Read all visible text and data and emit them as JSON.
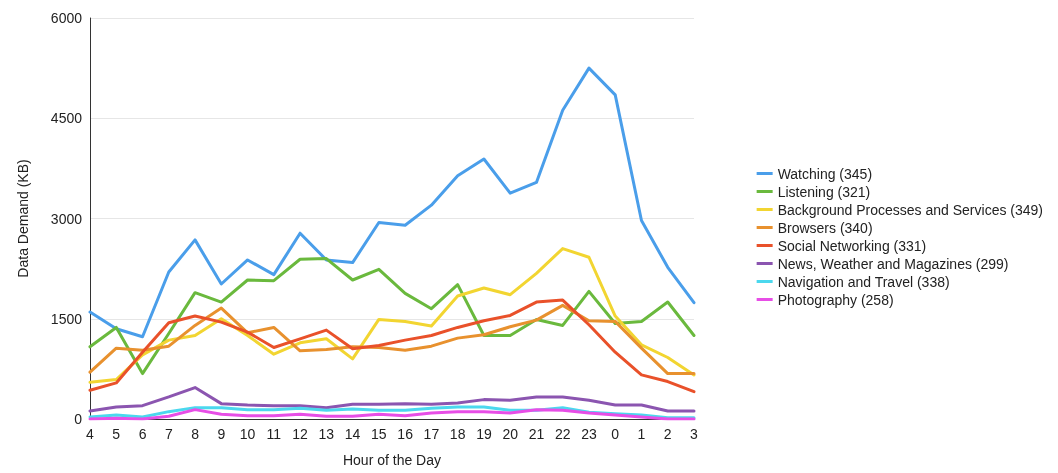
{
  "chart_data": {
    "type": "line",
    "xlabel": "Hour of the Day",
    "ylabel": "Data Demand (KB)",
    "categories": [
      "4",
      "5",
      "6",
      "7",
      "8",
      "9",
      "10",
      "11",
      "12",
      "13",
      "14",
      "15",
      "16",
      "17",
      "18",
      "19",
      "20",
      "21",
      "22",
      "23",
      "0",
      "1",
      "2",
      "3"
    ],
    "ylim": [
      0,
      6000
    ],
    "yticks": [
      0,
      1500,
      3000,
      4500,
      6000
    ],
    "grid": "y",
    "legend": "right",
    "marker": "none",
    "line_style": "solid",
    "series": [
      {
        "name": "Watching (345)",
        "color": "#4a9eea",
        "values": [
          1600,
          1350,
          1230,
          2200,
          2680,
          2020,
          2380,
          2160,
          2780,
          2380,
          2340,
          2940,
          2900,
          3200,
          3640,
          3890,
          3380,
          3540,
          4620,
          5250,
          4850,
          2970,
          2270,
          1740
        ]
      },
      {
        "name": "Listening (321)",
        "color": "#6ab93d",
        "values": [
          1080,
          1370,
          680,
          1280,
          1890,
          1750,
          2080,
          2070,
          2390,
          2400,
          2080,
          2240,
          1880,
          1650,
          2010,
          1250,
          1250,
          1490,
          1400,
          1910,
          1430,
          1460,
          1750,
          1250
        ]
      },
      {
        "name": "Background Processes and Services (349)",
        "color": "#f2d531",
        "values": [
          550,
          590,
          960,
          1180,
          1250,
          1500,
          1250,
          970,
          1140,
          1200,
          900,
          1490,
          1460,
          1390,
          1840,
          1960,
          1860,
          2180,
          2550,
          2420,
          1540,
          1110,
          920,
          660
        ]
      },
      {
        "name": "Browsers (340)",
        "color": "#e8912e",
        "values": [
          700,
          1060,
          1030,
          1090,
          1400,
          1660,
          1290,
          1370,
          1020,
          1040,
          1080,
          1070,
          1030,
          1090,
          1210,
          1260,
          1380,
          1480,
          1700,
          1470,
          1460,
          1060,
          680,
          680
        ]
      },
      {
        "name": "Social Networking (331)",
        "color": "#e9512a",
        "values": [
          430,
          540,
          1000,
          1440,
          1540,
          1450,
          1300,
          1070,
          1200,
          1330,
          1050,
          1100,
          1180,
          1250,
          1370,
          1470,
          1550,
          1750,
          1780,
          1410,
          1000,
          660,
          560,
          410
        ]
      },
      {
        "name": "News, Weather and Magazines (299)",
        "color": "#8b55b0",
        "values": [
          120,
          180,
          200,
          330,
          470,
          230,
          210,
          200,
          200,
          170,
          220,
          220,
          230,
          220,
          240,
          290,
          280,
          330,
          330,
          280,
          210,
          210,
          120,
          120
        ]
      },
      {
        "name": "Navigation and Travel (338)",
        "color": "#4bd8ee",
        "values": [
          30,
          60,
          30,
          110,
          170,
          170,
          140,
          140,
          160,
          130,
          150,
          130,
          130,
          160,
          180,
          180,
          130,
          130,
          170,
          100,
          80,
          60,
          20,
          20
        ]
      },
      {
        "name": "Photography (258)",
        "color": "#e74ee6",
        "values": [
          0,
          10,
          0,
          40,
          140,
          70,
          50,
          50,
          70,
          40,
          40,
          70,
          50,
          90,
          110,
          110,
          90,
          140,
          130,
          90,
          60,
          30,
          0,
          0
        ]
      }
    ]
  }
}
